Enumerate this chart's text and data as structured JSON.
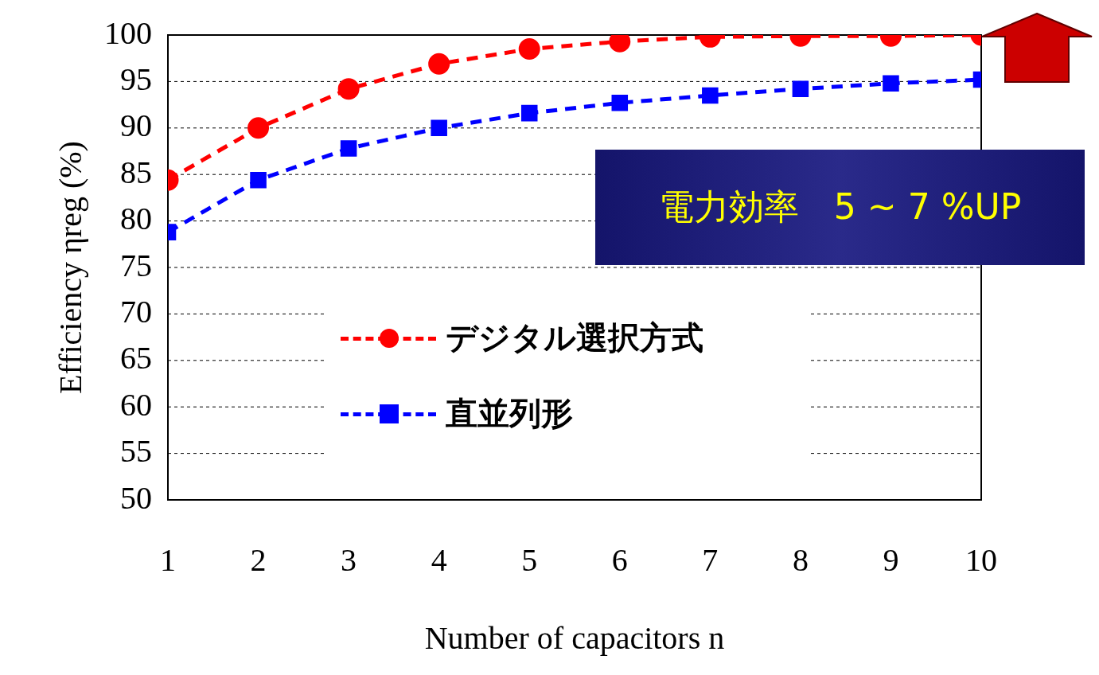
{
  "chart_data": {
    "type": "line",
    "xlabel": "Number of capacitors n",
    "ylabel": "Efficiency ηreg (%)",
    "x": [
      1,
      2,
      3,
      4,
      5,
      6,
      7,
      8,
      9,
      10
    ],
    "xlim": [
      1,
      10
    ],
    "xticks": [
      1,
      2,
      3,
      4,
      5,
      6,
      7,
      8,
      9,
      10
    ],
    "ylim": [
      50,
      100
    ],
    "yticks": [
      50,
      55,
      60,
      65,
      70,
      75,
      80,
      85,
      90,
      95,
      100
    ],
    "grid": "y",
    "legend": "center",
    "line_style": "dashed",
    "series": [
      {
        "name": "デジタル選択方式",
        "color": "#ff0000",
        "marker": "circle",
        "values": [
          84.4,
          90.0,
          94.2,
          96.9,
          98.5,
          99.3,
          99.8,
          99.9,
          99.9,
          100
        ]
      },
      {
        "name": "直並列形",
        "color": "#0000ff",
        "marker": "square",
        "values": [
          78.8,
          84.4,
          87.8,
          90.0,
          91.6,
          92.7,
          93.5,
          94.2,
          94.8,
          95.2
        ]
      }
    ],
    "annotations": [
      "電力効率　5 ~ 7 %UP"
    ]
  }
}
